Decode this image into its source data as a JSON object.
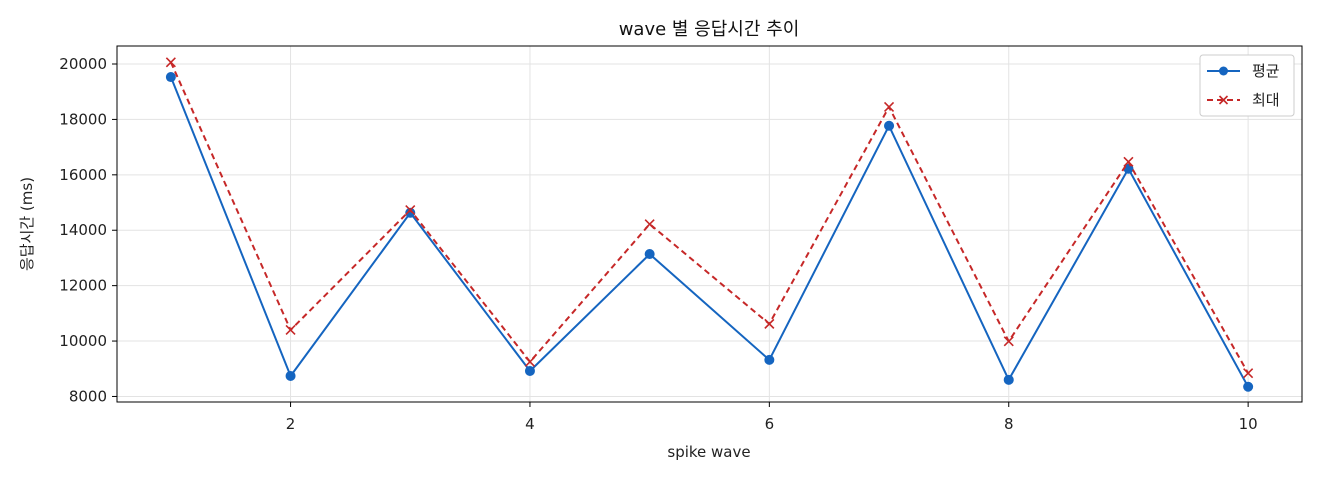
{
  "chart_data": {
    "type": "line",
    "title": "wave 별 응답시간 추이",
    "xlabel": "spike wave",
    "ylabel": "응답시간 (ms)",
    "x": [
      1,
      2,
      3,
      4,
      5,
      6,
      7,
      8,
      9,
      10
    ],
    "xlim": [
      0.55,
      10.45
    ],
    "ylim": [
      7800,
      20650
    ],
    "xticks": [
      2,
      4,
      6,
      8,
      10
    ],
    "yticks": [
      8000,
      10000,
      12000,
      14000,
      16000,
      18000,
      20000
    ],
    "grid": true,
    "legend_position": "top-right",
    "series": [
      {
        "name": "평균",
        "color": "#1565c0",
        "line_style": "solid",
        "marker": "circle",
        "values": [
          19530,
          8740,
          14630,
          8920,
          13140,
          9320,
          17770,
          8600,
          16220,
          8350
        ]
      },
      {
        "name": "최대",
        "color": "#c62828",
        "line_style": "dashed",
        "marker": "x",
        "values": [
          20060,
          10400,
          14730,
          9250,
          14220,
          10620,
          18450,
          9990,
          16470,
          8840
        ]
      }
    ]
  }
}
